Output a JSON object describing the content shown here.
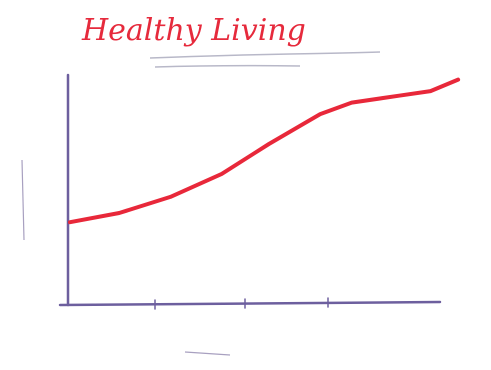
{
  "chart_data": {
    "type": "line",
    "title": "Healthy Living",
    "x": [
      0.5,
      13,
      26,
      39,
      51,
      64,
      72,
      84,
      92,
      99
    ],
    "series": [
      {
        "color": "#e8283a",
        "values": [
          36,
          40,
          47,
          57,
          70,
          83,
          88,
          91,
          93,
          98
        ]
      }
    ],
    "xlim": [
      0,
      100
    ],
    "ylim": [
      0,
      100
    ]
  }
}
